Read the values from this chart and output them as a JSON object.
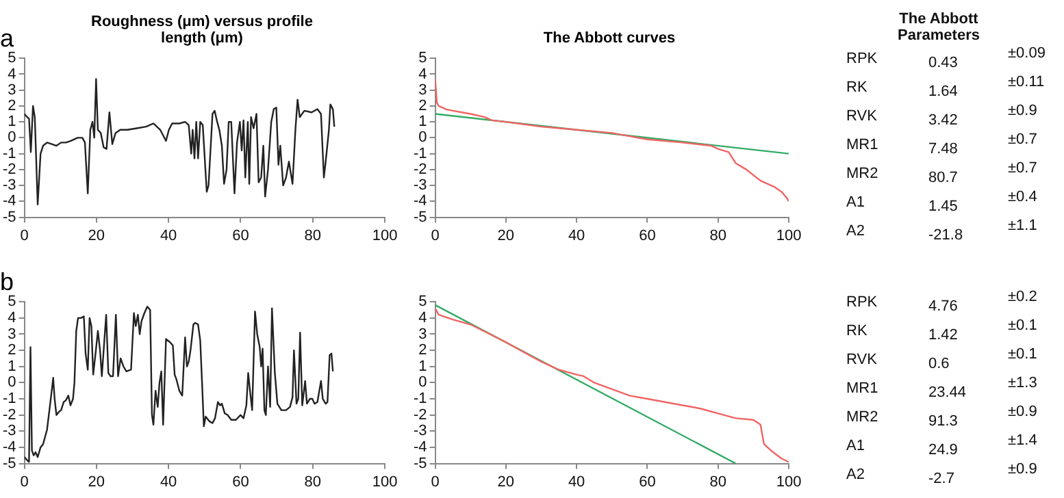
{
  "chart_data": [
    {
      "type": "line",
      "title": "Roughness (μm) versus profile length (μm)",
      "annotations": [
        "a"
      ],
      "color": "#222222",
      "marker": "none",
      "grid": false,
      "legend": false,
      "xlim": [
        0,
        100
      ],
      "xticks": [
        0,
        20,
        40,
        60,
        80,
        100
      ],
      "ylim": [
        -5,
        5
      ],
      "yticks": [
        -5,
        -4,
        -3,
        -2,
        -1,
        0,
        1,
        2,
        3,
        4,
        5
      ],
      "x": [
        0,
        0.8,
        1.3,
        1.8,
        2.4,
        2.9,
        3.7,
        4.5,
        5.2,
        6.3,
        7.6,
        8.9,
        10.2,
        11.5,
        12.8,
        14.8,
        16.1,
        16.8,
        17.6,
        18.3,
        18.9,
        19.4,
        19.9,
        20.4,
        21.2,
        22.0,
        22.8,
        23.6,
        24.4,
        25.3,
        26.6,
        28.6,
        31.2,
        33.8,
        35.8,
        37.7,
        39.3,
        40.1,
        41.0,
        43.0,
        44.6,
        45.6,
        46.3,
        46.7,
        47.2,
        47.7,
        48.2,
        48.8,
        49.5,
        50.6,
        51.1,
        52.2,
        52.8,
        53.5,
        54.1,
        54.8,
        55.4,
        56.1,
        56.7,
        57.4,
        58.3,
        59.0,
        59.8,
        60.3,
        60.8,
        61.3,
        62.0,
        62.4,
        62.9,
        63.6,
        64.4,
        65.0,
        65.7,
        66.3,
        66.8,
        67.6,
        68.5,
        69.2,
        69.9,
        70.5,
        71.0,
        71.8,
        72.6,
        73.4,
        74.4,
        75.2,
        75.8,
        76.4,
        77.7,
        79.7,
        81.3,
        82.3,
        83.1,
        83.6,
        84.5,
        84.9,
        85.6,
        86.0
      ],
      "values": [
        1.5,
        1.3,
        1.2,
        -0.9,
        2.0,
        1.3,
        -4.2,
        -1.0,
        -0.5,
        -0.3,
        -0.4,
        -0.5,
        -0.3,
        -0.3,
        -0.2,
        0,
        0,
        -0.3,
        -3.5,
        0.5,
        1.0,
        0,
        3.7,
        0.5,
        0.3,
        -0.6,
        -0.7,
        1.6,
        -0.4,
        0.3,
        0.5,
        0.5,
        0.6,
        0.7,
        0.9,
        0.5,
        -0.2,
        0.5,
        0.9,
        0.9,
        1.0,
        0.8,
        -1.0,
        0.5,
        -1.3,
        1.0,
        -1.3,
        1.0,
        0.8,
        -3.4,
        -3.0,
        1.5,
        1.7,
        1.0,
        0.5,
        -0.5,
        -2.9,
        -2.0,
        1.0,
        1.0,
        -3.5,
        -0.3,
        1.0,
        -0.8,
        1.1,
        -2.5,
        1.0,
        -2.9,
        1.3,
        0.6,
        1.5,
        -2.8,
        -2.5,
        -0.5,
        -3.7,
        -2.0,
        1.0,
        1.8,
        1.9,
        -1.7,
        -0.5,
        -3.0,
        -2.5,
        -1.5,
        -2.9,
        0.5,
        2.4,
        1.3,
        1.7,
        1.6,
        1.8,
        1.5,
        -2.5,
        -1.5,
        0.5,
        2.1,
        1.8,
        0.7
      ]
    },
    {
      "type": "line",
      "title": "The Abbott curves",
      "marker": "none",
      "grid": false,
      "legend": false,
      "xlim": [
        0,
        100
      ],
      "xticks": [
        0,
        20,
        40,
        60,
        80,
        100
      ],
      "ylim": [
        -5,
        5
      ],
      "yticks": [
        -5,
        -4,
        -3,
        -2,
        -1,
        0,
        1,
        2,
        3,
        4,
        5
      ],
      "series": [
        {
          "color": "#f06464",
          "x": [
            0,
            0.5,
            1,
            3,
            5,
            10,
            14,
            16,
            20,
            30,
            40,
            50,
            55,
            60,
            70,
            78,
            80,
            83,
            85,
            88,
            92,
            96,
            98,
            99.5,
            100
          ],
          "values": [
            3.7,
            2.2,
            2.0,
            1.8,
            1.7,
            1.5,
            1.3,
            1.1,
            1.0,
            0.7,
            0.5,
            0.3,
            0.1,
            -0.1,
            -0.3,
            -0.5,
            -0.7,
            -0.9,
            -1.6,
            -2.0,
            -2.7,
            -3.1,
            -3.4,
            -3.8,
            -4.0
          ]
        },
        {
          "color": "#33aa66",
          "x": [
            0,
            100
          ],
          "values": [
            1.5,
            -1.0
          ]
        }
      ]
    },
    {
      "type": "other",
      "title": "The Abbott Parameters",
      "annotations": [
        "RPK",
        "0.43",
        "±0.09",
        "RK",
        "1.64",
        "±0.11",
        "RVK",
        "3.42",
        "±0.9",
        "MR1",
        "7.48",
        "±0.7",
        "MR2",
        "80.7",
        "±0.7",
        "A1",
        "1.45",
        "±0.4",
        "A2",
        "-21.8",
        "±1.1"
      ]
    },
    {
      "type": "line",
      "annotations": [
        "b"
      ],
      "color": "#222222",
      "marker": "none",
      "grid": false,
      "legend": false,
      "xlim": [
        0,
        100
      ],
      "xticks": [
        0,
        20,
        40,
        60,
        80,
        100
      ],
      "ylim": [
        -5,
        5
      ],
      "yticks": [
        -5,
        -4,
        -3,
        -2,
        -1,
        0,
        1,
        2,
        3,
        4,
        5
      ],
      "x": [
        0,
        0.8,
        1.3,
        1.7,
        2.1,
        2.6,
        3.1,
        3.7,
        4.5,
        5.2,
        6.3,
        6.9,
        7.6,
        8.0,
        8.4,
        8.9,
        9.6,
        10.2,
        10.9,
        11.5,
        12.2,
        12.8,
        13.5,
        13.9,
        14.4,
        14.9,
        15.7,
        16.5,
        17.0,
        17.6,
        18.1,
        18.6,
        19.1,
        19.8,
        20.4,
        21.0,
        21.5,
        22.0,
        22.7,
        23.3,
        23.9,
        24.6,
        25.4,
        26.0,
        26.7,
        27.5,
        28.3,
        29.6,
        30.4,
        30.9,
        31.5,
        32.0,
        32.5,
        33.3,
        34.1,
        34.9,
        35.4,
        35.8,
        36.4,
        37.0,
        37.5,
        38.0,
        38.5,
        39.3,
        40.4,
        41.2,
        41.7,
        42.2,
        43.0,
        43.8,
        44.6,
        45.1,
        45.6,
        46.1,
        46.9,
        47.4,
        48.2,
        48.8,
        49.3,
        49.8,
        50.3,
        51.4,
        52.2,
        52.9,
        53.7,
        54.3,
        54.8,
        55.6,
        56.4,
        57.4,
        58.7,
        60.0,
        60.8,
        61.6,
        62.1,
        62.6,
        63.2,
        64.0,
        64.6,
        65.3,
        65.7,
        66.1,
        66.6,
        67.0,
        67.6,
        68.2,
        68.7,
        69.5,
        70.2,
        71.3,
        72.6,
        73.7,
        74.4,
        74.8,
        75.5,
        76.0,
        76.5,
        77.1,
        77.9,
        78.4,
        79.2,
        79.9,
        80.5,
        81.3,
        82.3,
        82.8,
        83.6,
        84.1,
        84.7,
        85.2,
        85.6
      ],
      "values": [
        -4.6,
        -4.8,
        -4.9,
        2.2,
        -4.2,
        -4.5,
        -4.3,
        -4.6,
        -4.0,
        -3.8,
        -2.9,
        -1.8,
        -0.5,
        0.3,
        -1.0,
        -2.0,
        -1.8,
        -1.7,
        -1.2,
        -1.1,
        -0.8,
        -1.4,
        -1.0,
        0,
        3.2,
        4.0,
        4.0,
        4.1,
        1.8,
        0.8,
        4.0,
        3.5,
        0.5,
        1.9,
        3.2,
        2.0,
        0.4,
        2.0,
        4.2,
        0.6,
        0.4,
        0.4,
        4.2,
        0.4,
        1.5,
        1.0,
        0.7,
        0.8,
        4.3,
        3.5,
        4.2,
        3.0,
        3.8,
        4.3,
        4.7,
        4.5,
        -2.0,
        -2.6,
        -0.5,
        -1.5,
        0,
        0.7,
        -2.6,
        2.7,
        2.5,
        2.3,
        0.5,
        0.2,
        -0.5,
        -0.8,
        2.8,
        1.0,
        1.3,
        2.0,
        3.6,
        3.7,
        3.6,
        2.6,
        0,
        -2.7,
        -2.1,
        -2.4,
        -2.5,
        -2.2,
        -1.2,
        -1.4,
        -1.3,
        -1.9,
        -2.0,
        -2.3,
        -2.3,
        -2.0,
        -2.2,
        -1.4,
        0.6,
        -0.5,
        -1.7,
        4.4,
        3.0,
        2.2,
        1.0,
        2.1,
        -1.7,
        -2.0,
        1.0,
        -1.5,
        4.6,
        0.6,
        -1.3,
        -1.7,
        -1.7,
        -1.5,
        -0.9,
        2.0,
        -1.3,
        -1.0,
        3.1,
        -1.4,
        0.1,
        -1.3,
        -1.0,
        -1.0,
        -1.3,
        -1.2,
        0.1,
        -1.0,
        -1.3,
        -1.2,
        1.7,
        1.8,
        0.7
      ]
    },
    {
      "type": "line",
      "marker": "none",
      "grid": false,
      "legend": false,
      "xlim": [
        0,
        100
      ],
      "xticks": [
        0,
        20,
        40,
        60,
        80,
        100
      ],
      "ylim": [
        -5,
        5
      ],
      "yticks": [
        -5,
        -4,
        -3,
        -2,
        -1,
        0,
        1,
        2,
        3,
        4,
        5
      ],
      "series": [
        {
          "color": "#f06464",
          "x": [
            0,
            1,
            5,
            10,
            20,
            30,
            35,
            40,
            42,
            45,
            50,
            55,
            60,
            65,
            70,
            75,
            80,
            85,
            90,
            92,
            93,
            95,
            98,
            100
          ],
          "values": [
            4.6,
            4.2,
            3.9,
            3.6,
            2.5,
            1.3,
            0.8,
            0.5,
            0.4,
            0,
            -0.4,
            -0.8,
            -1.0,
            -1.2,
            -1.4,
            -1.6,
            -1.9,
            -2.2,
            -2.3,
            -2.6,
            -3.8,
            -4.2,
            -4.7,
            -4.9
          ]
        },
        {
          "color": "#33aa66",
          "x": [
            0,
            85
          ],
          "values": [
            4.8,
            -5
          ]
        }
      ]
    },
    {
      "type": "other",
      "annotations": [
        "RPK",
        "4.76",
        "±0.2",
        "RK",
        "1.42",
        "±0.1",
        "RVK",
        "0.6",
        "±0.1",
        "MR1",
        "23.44",
        "±1.3",
        "MR2",
        "91.3",
        "±0.9",
        "A1",
        "24.9",
        "±1.4",
        "A2",
        "-2.7",
        "±0.9"
      ]
    }
  ]
}
